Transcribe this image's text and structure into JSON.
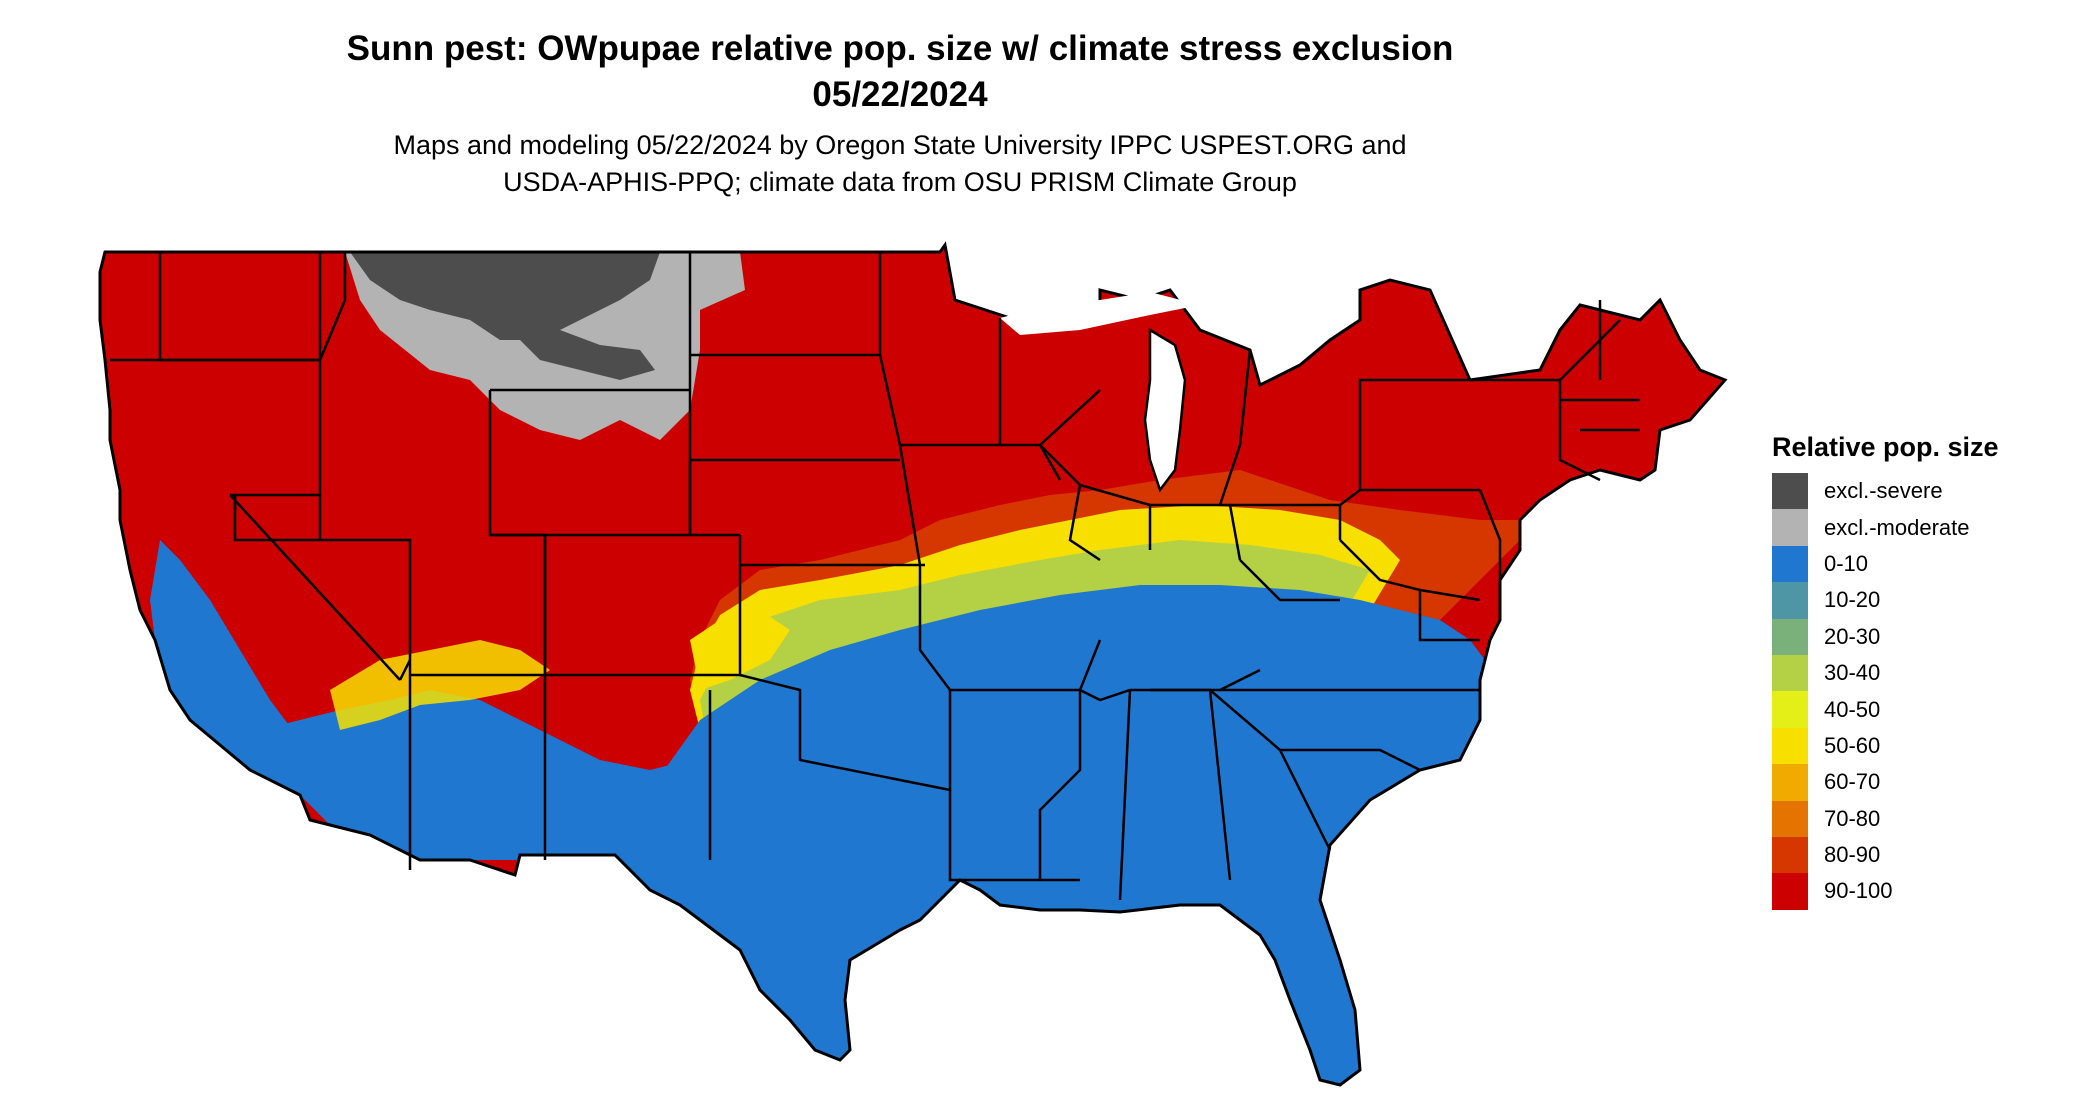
{
  "title_line1": "Sunn pest: OWpupae relative pop. size w/ climate stress exclusion",
  "title_line2": "05/22/2024",
  "subtitle_line1": "Maps and modeling 05/22/2024 by Oregon State University IPPC USPEST.ORG and",
  "subtitle_line2": "USDA-APHIS-PPQ; climate data from OSU PRISM Climate Group",
  "legend": {
    "title": "Relative pop. size",
    "items": [
      {
        "label": "excl.-severe",
        "color": "#4d4d4d"
      },
      {
        "label": "excl.-moderate",
        "color": "#b3b3b3"
      },
      {
        "label": "0-10",
        "color": "#1f77d0"
      },
      {
        "label": "10-20",
        "color": "#4e95a5"
      },
      {
        "label": "20-30",
        "color": "#7ab07a"
      },
      {
        "label": "30-40",
        "color": "#b4d045"
      },
      {
        "label": "40-50",
        "color": "#e4ef18"
      },
      {
        "label": "50-60",
        "color": "#f7df00"
      },
      {
        "label": "60-70",
        "color": "#f0aa00"
      },
      {
        "label": "70-80",
        "color": "#e57300"
      },
      {
        "label": "80-90",
        "color": "#d63600"
      },
      {
        "label": "90-100",
        "color": "#cc0000"
      }
    ]
  }
}
